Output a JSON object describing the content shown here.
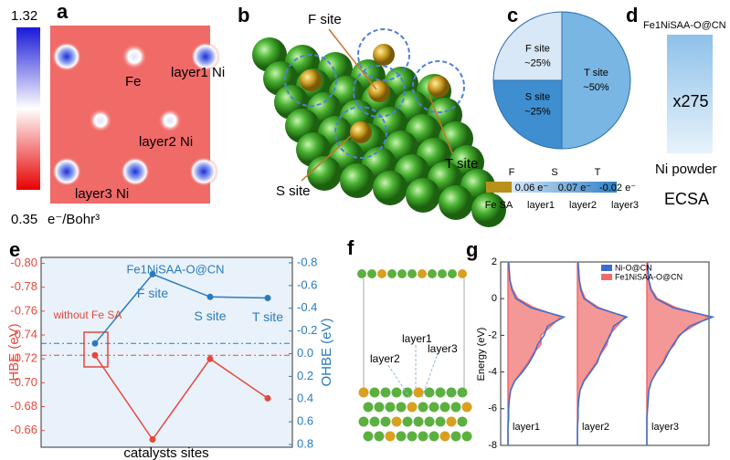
{
  "panel_labels": [
    "a",
    "b",
    "c",
    "d",
    "e",
    "f",
    "g"
  ],
  "panels": {
    "a": {
      "colorbar_max": "1.32",
      "colorbar_min": "0.35",
      "unit": "e⁻/Bohr³",
      "sites": [
        "Fe",
        "layer1 Ni",
        "layer2 Ni",
        "layer3 Ni"
      ]
    },
    "b": {
      "sites": [
        "F site",
        "T site",
        "S site"
      ]
    },
    "c": {
      "layers_header": [
        "F",
        "S",
        "T"
      ],
      "layers": [
        "Fe SA",
        "layer1",
        "layer2",
        "layer3"
      ],
      "charges": [
        "0.06 e⁻",
        "0.07 e⁻",
        "-0.02 e⁻"
      ]
    },
    "d": {
      "sample": "Fe1NiSAA-O@CN",
      "ratio": "x275",
      "reference": "Ni powder",
      "metric": "ECSA"
    },
    "f": {
      "layers": [
        "layer1",
        "layer2",
        "layer3"
      ]
    }
  },
  "chart_data": [
    {
      "type": "pie",
      "categories": [
        "F site",
        "S site",
        "T site"
      ],
      "values": [
        25,
        25,
        50
      ],
      "value_labels": [
        "~25%",
        "~25%",
        "~50%"
      ],
      "colors": [
        "#d9e8f6",
        "#3f8fd0",
        "#7ab6e3"
      ]
    },
    {
      "type": "line",
      "annotation": "Fe1NiSAA-O@CN",
      "categories": [
        "without Fe SA",
        "F site",
        "S site",
        "T site"
      ],
      "xlabel": "catalysts sites",
      "ylabel": "HBE (eV)",
      "y2label": "OHBE (eV)",
      "ylim": [
        -0.646,
        -0.805
      ],
      "yticks": [
        {
          "value": -0.8,
          "label": "-0.80"
        },
        -0.78,
        -0.76,
        -0.74,
        -0.72,
        {
          "value": -0.7,
          "label": "-0.70"
        },
        -0.68,
        -0.66
      ],
      "y2lim": [
        0.824,
        -0.848
      ],
      "y2ticks": [
        -0.8,
        -0.6,
        -0.4,
        -0.2,
        {
          "value": 0,
          "label": "0.0"
        },
        0.2,
        0.4,
        0.6,
        0.8
      ],
      "series": [
        {
          "color": "#e5483c",
          "values": [
            -0.723,
            -0.6525,
            -0.72,
            -0.687
          ]
        },
        {
          "color": "#2a7bbd",
          "values": [
            -0.09,
            -0.7,
            -0.5,
            -0.49
          ],
          "axis": "y2"
        }
      ]
    },
    {
      "type": "area",
      "xlabel": "Energy (eV)",
      "xlim": [
        -8,
        2
      ],
      "xticks": [
        2,
        0,
        -2,
        -4,
        -6,
        -8
      ],
      "x": [
        2,
        1.5,
        1,
        0.5,
        0,
        -0.5,
        -1,
        -1.5,
        -2,
        -2.5,
        -3,
        -3.5,
        -4,
        -4.5,
        -5,
        -5.5,
        -6,
        -6.5,
        -7,
        -7.5,
        -8
      ],
      "panels": [
        {
          "label": "layer1",
          "series": [
            {
              "name": "Ni-O@CN",
              "color": "#3a6fd0",
              "values": [
                0.01,
                0.02,
                0.03,
                0.06,
                0.12,
                0.35,
                0.85,
                0.6,
                0.55,
                0.45,
                0.4,
                0.32,
                0.22,
                0.1,
                0.04,
                0.02,
                0.01,
                0.01,
                0,
                0,
                0
              ]
            },
            {
              "name": "Fe1NiSAA-O@CN",
              "color": "#ef6b6b",
              "values": [
                0.01,
                0.02,
                0.03,
                0.07,
                0.15,
                0.4,
                0.8,
                0.65,
                0.5,
                0.5,
                0.38,
                0.3,
                0.2,
                0.1,
                0.04,
                0.02,
                0.01,
                0.01,
                0,
                0,
                0
              ]
            }
          ]
        },
        {
          "label": "layer2",
          "series": [
            {
              "name": "Ni-O@CN",
              "color": "#3a6fd0",
              "values": [
                0.01,
                0.02,
                0.03,
                0.05,
                0.1,
                0.3,
                0.75,
                0.55,
                0.5,
                0.42,
                0.35,
                0.3,
                0.2,
                0.1,
                0.04,
                0.02,
                0.01,
                0.01,
                0,
                0,
                0
              ]
            },
            {
              "name": "Fe1NiSAA-O@CN",
              "color": "#ef6b6b",
              "values": [
                0.01,
                0.02,
                0.03,
                0.06,
                0.12,
                0.33,
                0.72,
                0.6,
                0.48,
                0.45,
                0.36,
                0.28,
                0.18,
                0.09,
                0.04,
                0.02,
                0.01,
                0.01,
                0,
                0,
                0
              ]
            }
          ]
        },
        {
          "label": "layer3",
          "series": [
            {
              "name": "Ni-O@CN",
              "color": "#3a6fd0",
              "values": [
                0.01,
                0.02,
                0.03,
                0.06,
                0.14,
                0.4,
                1.0,
                0.65,
                0.5,
                0.4,
                0.32,
                0.25,
                0.15,
                0.07,
                0.03,
                0.02,
                0.01,
                0,
                0,
                0,
                0
              ]
            },
            {
              "name": "Fe1NiSAA-O@CN",
              "color": "#ef6b6b",
              "values": [
                0.01,
                0.02,
                0.03,
                0.07,
                0.16,
                0.45,
                0.95,
                0.7,
                0.48,
                0.42,
                0.3,
                0.24,
                0.14,
                0.07,
                0.03,
                0.02,
                0.01,
                0,
                0,
                0,
                0
              ]
            }
          ]
        }
      ]
    }
  ]
}
